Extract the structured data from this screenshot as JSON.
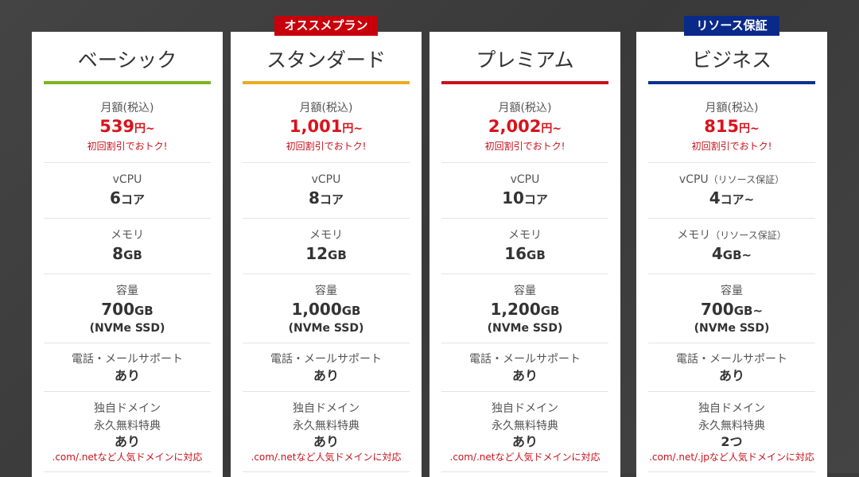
{
  "common": {
    "price_label": "月額(税込)",
    "price_unit": "円~",
    "discount": "初回割引でおトク!",
    "vcpu_label": "vCPU",
    "mem_label": "メモリ",
    "disk_label": "容量",
    "disk_type": "(NVMe SSD)",
    "support_label": "電話・メールサポート",
    "support_value": "あり",
    "domain_label1": "独自ドメイン",
    "domain_label2": "永久無料特典"
  },
  "plans": [
    {
      "name": "ベーシック",
      "color": "#7ab51d",
      "price": "539",
      "vcpu": "6",
      "vcpu_unit": "コア",
      "vcpu_note": "",
      "mem": "8",
      "mem_unit": "GB",
      "mem_note": "",
      "disk": "700",
      "disk_unit": "GB",
      "domain": "あり",
      "domain_note": ".com/.netなど人気ドメインに対応"
    },
    {
      "name": "スタンダード",
      "color": "#e8ac24",
      "badge": "オススメプラン",
      "badge_color": "#c8000b",
      "price": "1,001",
      "vcpu": "8",
      "vcpu_unit": "コア",
      "vcpu_note": "",
      "mem": "12",
      "mem_unit": "GB",
      "mem_note": "",
      "disk": "1,000",
      "disk_unit": "GB",
      "domain": "あり",
      "domain_note": ".com/.netなど人気ドメインに対応"
    },
    {
      "name": "プレミアム",
      "color": "#c8121b",
      "price": "2,002",
      "vcpu": "10",
      "vcpu_unit": "コア",
      "vcpu_note": "",
      "mem": "16",
      "mem_unit": "GB",
      "mem_note": "",
      "disk": "1,200",
      "disk_unit": "GB",
      "domain": "あり",
      "domain_note": ".com/.netなど人気ドメインに対応"
    },
    {
      "name": "ビジネス",
      "color": "#0a3190",
      "badge": "リソース保証",
      "badge_color": "#0a2a8a",
      "price": "815",
      "vcpu": "4",
      "vcpu_unit": "コア~",
      "vcpu_note": "（リソース保証）",
      "mem": "4",
      "mem_unit": "GB~",
      "mem_note": "（リソース保証）",
      "disk": "700",
      "disk_unit": "GB~",
      "domain": "2つ",
      "domain_note": ".com/.net/.jpなど人気ドメインに対応"
    }
  ]
}
